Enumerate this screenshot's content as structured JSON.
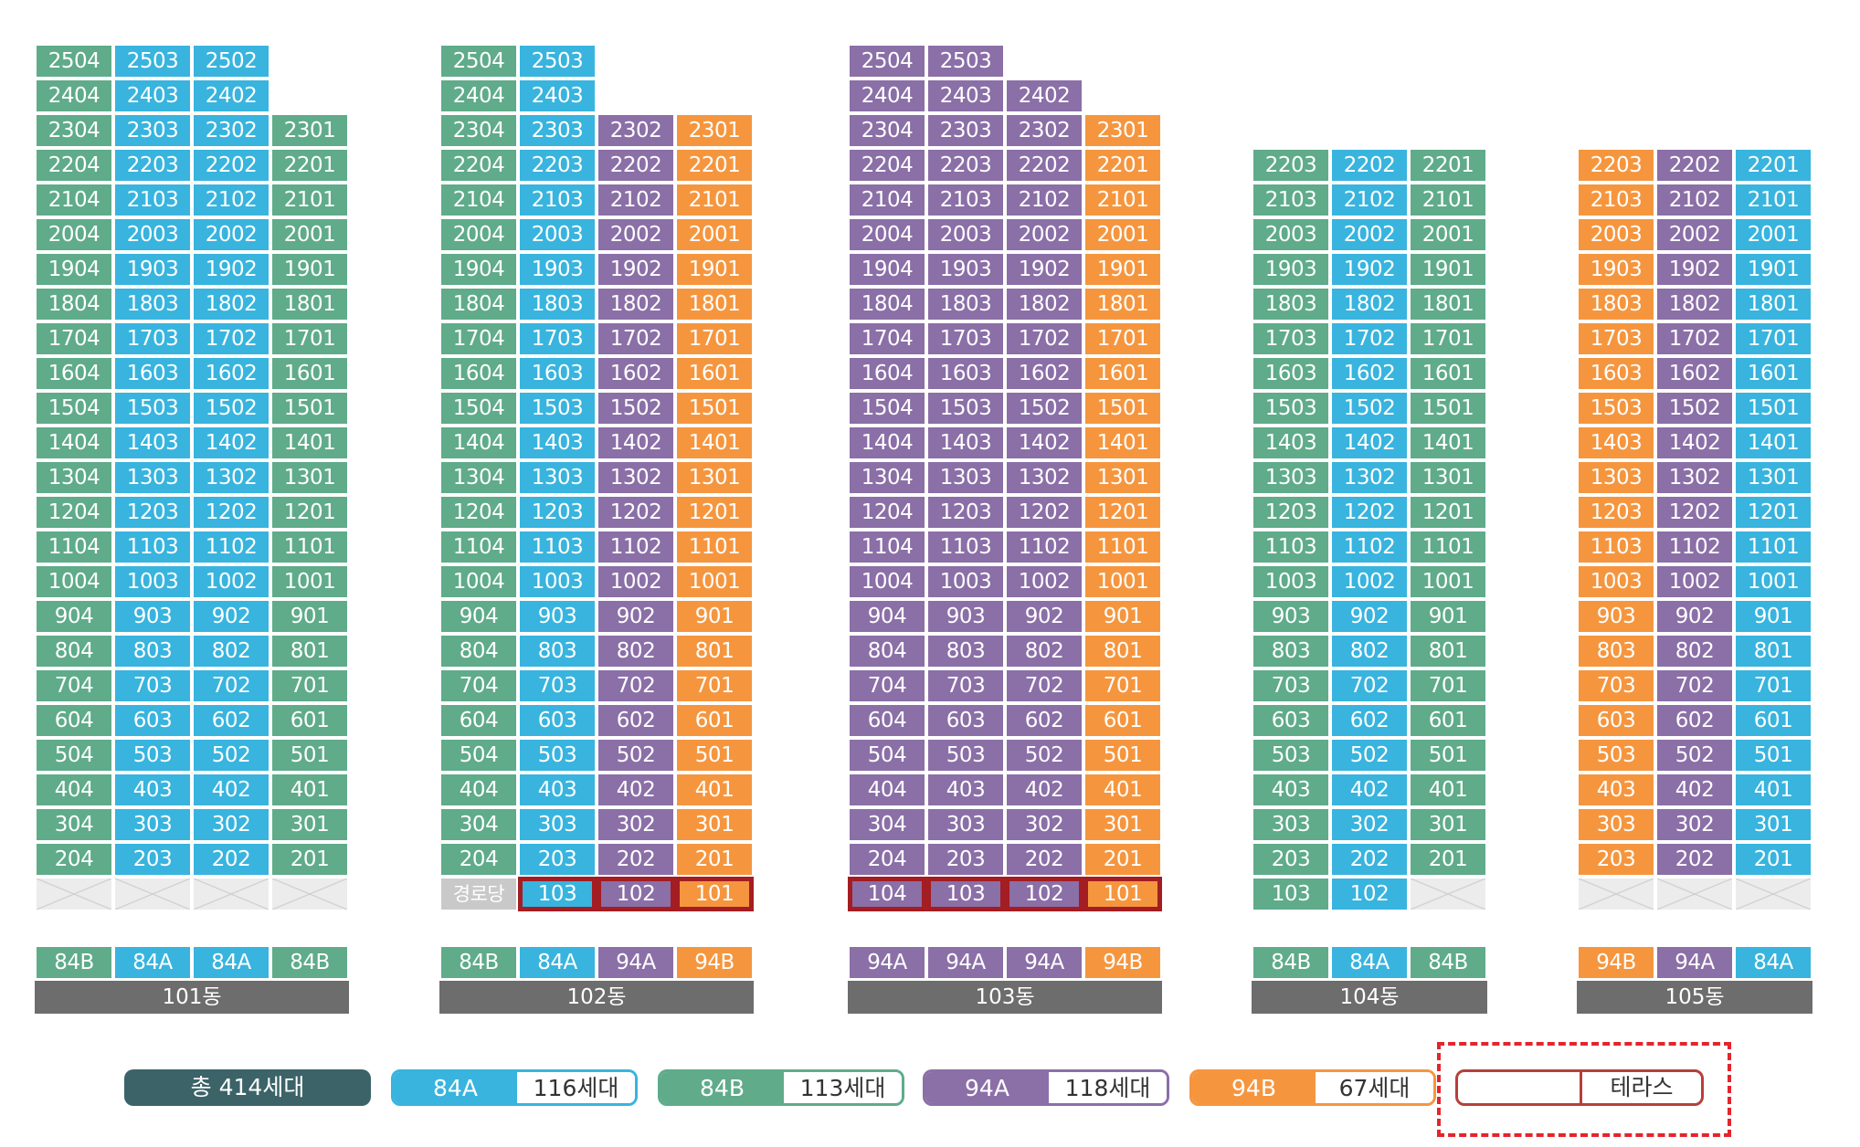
{
  "colors": {
    "84A": "#38b4de",
    "84B": "#5fab8a",
    "94A": "#8b6fa7",
    "94B": "#f5963f",
    "total": "#3b6368",
    "label": "#6d6d6d",
    "terrace": "#a31d22"
  },
  "buildings": [
    {
      "label": "101동",
      "lines": [
        {
          "type": "84B",
          "top": 25,
          "ground": "empty"
        },
        {
          "type": "84A",
          "top": 25,
          "ground": "empty"
        },
        {
          "type": "84A",
          "top": 25,
          "ground": "empty"
        },
        {
          "type": "84B",
          "top": 23,
          "ground": "empty"
        }
      ]
    },
    {
      "label": "102동",
      "lines": [
        {
          "type": "84B",
          "top": 25,
          "ground": "amenity",
          "groundLabel": "경로당"
        },
        {
          "type": "84A",
          "top": 25,
          "ground": "terrace",
          "groundNum": "103"
        },
        {
          "type": "94A",
          "top": 23,
          "ground": "terrace",
          "groundNum": "102"
        },
        {
          "type": "94B",
          "top": 23,
          "ground": "terrace",
          "groundNum": "101"
        }
      ]
    },
    {
      "label": "103동",
      "lines": [
        {
          "type": "94A",
          "top": 25,
          "ground": "terrace",
          "groundNum": "104"
        },
        {
          "type": "94A",
          "top": 25,
          "ground": "terrace",
          "groundNum": "103"
        },
        {
          "type": "94A",
          "top": 24,
          "ground": "terrace",
          "groundNum": "102"
        },
        {
          "type": "94B",
          "top": 23,
          "ground": "terrace",
          "groundNum": "101"
        }
      ]
    },
    {
      "label": "104동",
      "lines": [
        {
          "type": "84B",
          "top": 22,
          "ground": "unit",
          "groundNum": "103"
        },
        {
          "type": "84A",
          "top": 22,
          "ground": "unit",
          "groundNum": "102"
        },
        {
          "type": "84B",
          "top": 22,
          "ground": "empty"
        }
      ]
    },
    {
      "label": "105동",
      "lines": [
        {
          "type": "94B",
          "top": 22,
          "ground": "empty"
        },
        {
          "type": "94A",
          "top": 22,
          "ground": "empty"
        },
        {
          "type": "84A",
          "top": 22,
          "ground": "empty"
        }
      ]
    }
  ],
  "legend": {
    "total": "총 414세대",
    "items": [
      {
        "type": "84A",
        "count": "116세대"
      },
      {
        "type": "84B",
        "count": "113세대"
      },
      {
        "type": "94A",
        "count": "118세대"
      },
      {
        "type": "94B",
        "count": "67세대"
      }
    ],
    "terrace": "테라스"
  }
}
